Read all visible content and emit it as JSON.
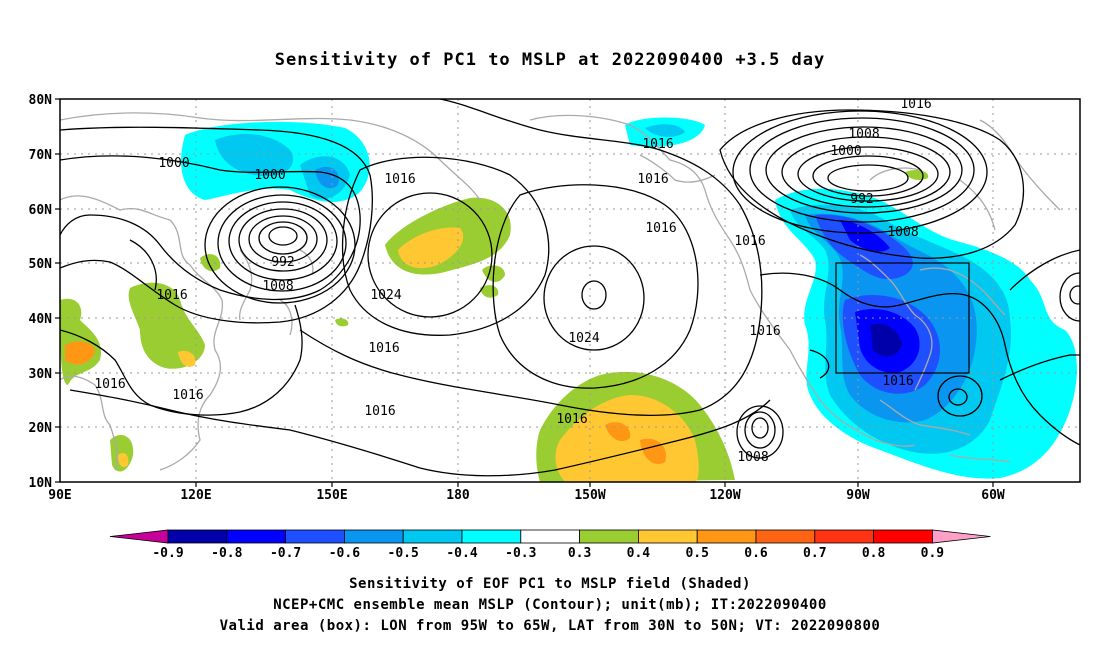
{
  "title": "Sensitivity of PC1 to MSLP at 2022090400 +3.5 day",
  "lat_labels": [
    "80N",
    "70N",
    "60N",
    "50N",
    "40N",
    "30N",
    "20N",
    "10N"
  ],
  "lon_labels": [
    "90E",
    "120E",
    "150E",
    "180",
    "150W",
    "120W",
    "90W",
    "60W"
  ],
  "contour_labels": [
    "1016",
    "1008",
    "1000",
    "992",
    "1008",
    "1016",
    "1016",
    "1000",
    "1000",
    "992",
    "1008",
    "1016",
    "1016",
    "1024",
    "1016",
    "1016",
    "1024",
    "1016",
    "1016",
    "1016",
    "1016",
    "1016",
    "1016",
    "1016",
    "1008",
    "1016"
  ],
  "colorbar": {
    "labels": [
      "-0.9",
      "-0.8",
      "-0.7",
      "-0.6",
      "-0.5",
      "-0.4",
      "-0.3",
      "0.3",
      "0.4",
      "0.5",
      "0.6",
      "0.7",
      "0.8",
      "0.9"
    ],
    "colors": [
      "#0000aa",
      "#0000ff",
      "#1e50ff",
      "#0a96f0",
      "#00c8f0",
      "#00ffff",
      "#ffffff",
      "#9acd32",
      "#ffc832",
      "#ff9614",
      "#ff6414",
      "#ff3214",
      "#ff0000"
    ],
    "low_end_color": "#c8009a",
    "high_end_color": "#ffa0c8"
  },
  "captions": [
    "Sensitivity of EOF PC1 to MSLP field (Shaded)",
    "NCEP+CMC ensemble mean MSLP (Contour); unit(mb); IT:2022090400",
    "Valid area (box): LON from 95W to 65W, LAT from 30N to 50N; VT: 2022090800"
  ]
}
